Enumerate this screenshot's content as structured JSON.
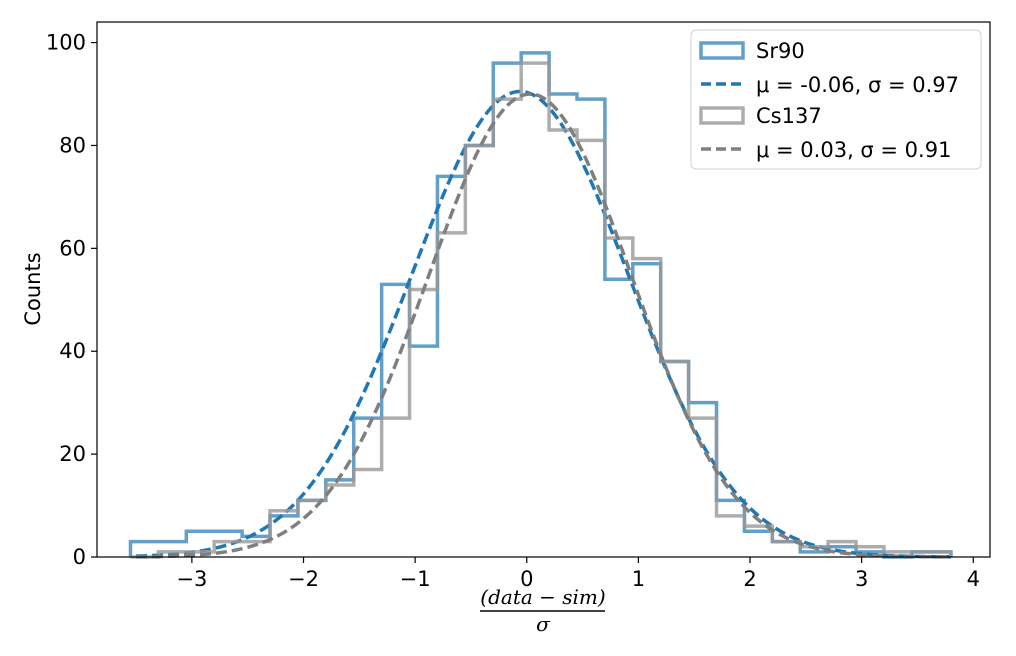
{
  "chart_data": {
    "type": "histogram",
    "title": "",
    "xlabel": {
      "numerator": "(data − sim)",
      "denominator": "σ"
    },
    "ylabel": "Counts",
    "xlim": [
      -3.85,
      4.15
    ],
    "ylim": [
      0,
      104
    ],
    "x_ticks": [
      -3,
      -2,
      -1,
      0,
      1,
      2,
      3,
      4
    ],
    "x_tick_labels": [
      "−3",
      "−2",
      "−1",
      "0",
      "1",
      "2",
      "3",
      "4"
    ],
    "y_ticks": [
      0,
      20,
      40,
      60,
      80,
      100
    ],
    "y_tick_labels": [
      "0",
      "20",
      "40",
      "60",
      "80",
      "100"
    ],
    "legend_position": "top-right",
    "series": [
      {
        "name": "Sr90",
        "kind": "step",
        "color": "#1f77b4",
        "edges": [
          -3.55,
          -3.3,
          -3.05,
          -2.8,
          -2.55,
          -2.3,
          -2.05,
          -1.8,
          -1.55,
          -1.3,
          -1.05,
          -0.8,
          -0.55,
          -0.3,
          -0.05,
          0.2,
          0.45,
          0.7,
          0.95,
          1.2,
          1.45,
          1.7,
          1.95,
          2.2,
          2.45,
          2.7,
          2.95,
          3.2,
          3.45,
          3.8
        ],
        "counts": [
          3,
          3,
          5,
          5,
          4,
          8,
          11,
          15,
          27,
          53,
          41,
          74,
          80,
          96,
          98,
          90,
          89,
          54,
          57,
          38,
          30,
          11,
          5,
          3,
          1,
          2,
          1,
          0,
          1
        ]
      },
      {
        "name": "μ = -0.06, σ = 0.97",
        "kind": "gaussian",
        "color": "#1f77b4",
        "mu": -0.06,
        "sigma": 0.97,
        "amplitude": 90.5,
        "x_range": [
          -3.5,
          3.8
        ]
      },
      {
        "name": "Cs137",
        "kind": "step",
        "color": "#999999",
        "edges": [
          -3.55,
          -3.3,
          -3.05,
          -2.8,
          -2.55,
          -2.3,
          -2.05,
          -1.8,
          -1.55,
          -1.3,
          -1.05,
          -0.8,
          -0.55,
          -0.3,
          -0.05,
          0.2,
          0.45,
          0.7,
          0.95,
          1.2,
          1.45,
          1.7,
          1.95,
          2.2,
          2.45,
          2.7,
          2.95,
          3.2,
          3.45,
          3.8
        ],
        "counts": [
          0,
          1,
          1,
          3,
          3,
          9,
          11,
          14,
          17,
          27,
          52,
          63,
          80,
          89,
          96,
          83,
          81,
          62,
          58,
          38,
          27,
          8,
          6,
          3,
          2,
          3,
          2,
          1,
          1
        ]
      },
      {
        "name": "μ = 0.03, σ = 0.91",
        "kind": "gaussian",
        "color": "#7f7f7f",
        "mu": 0.03,
        "sigma": 0.91,
        "amplitude": 90,
        "x_range": [
          -3.5,
          3.8
        ]
      }
    ]
  }
}
